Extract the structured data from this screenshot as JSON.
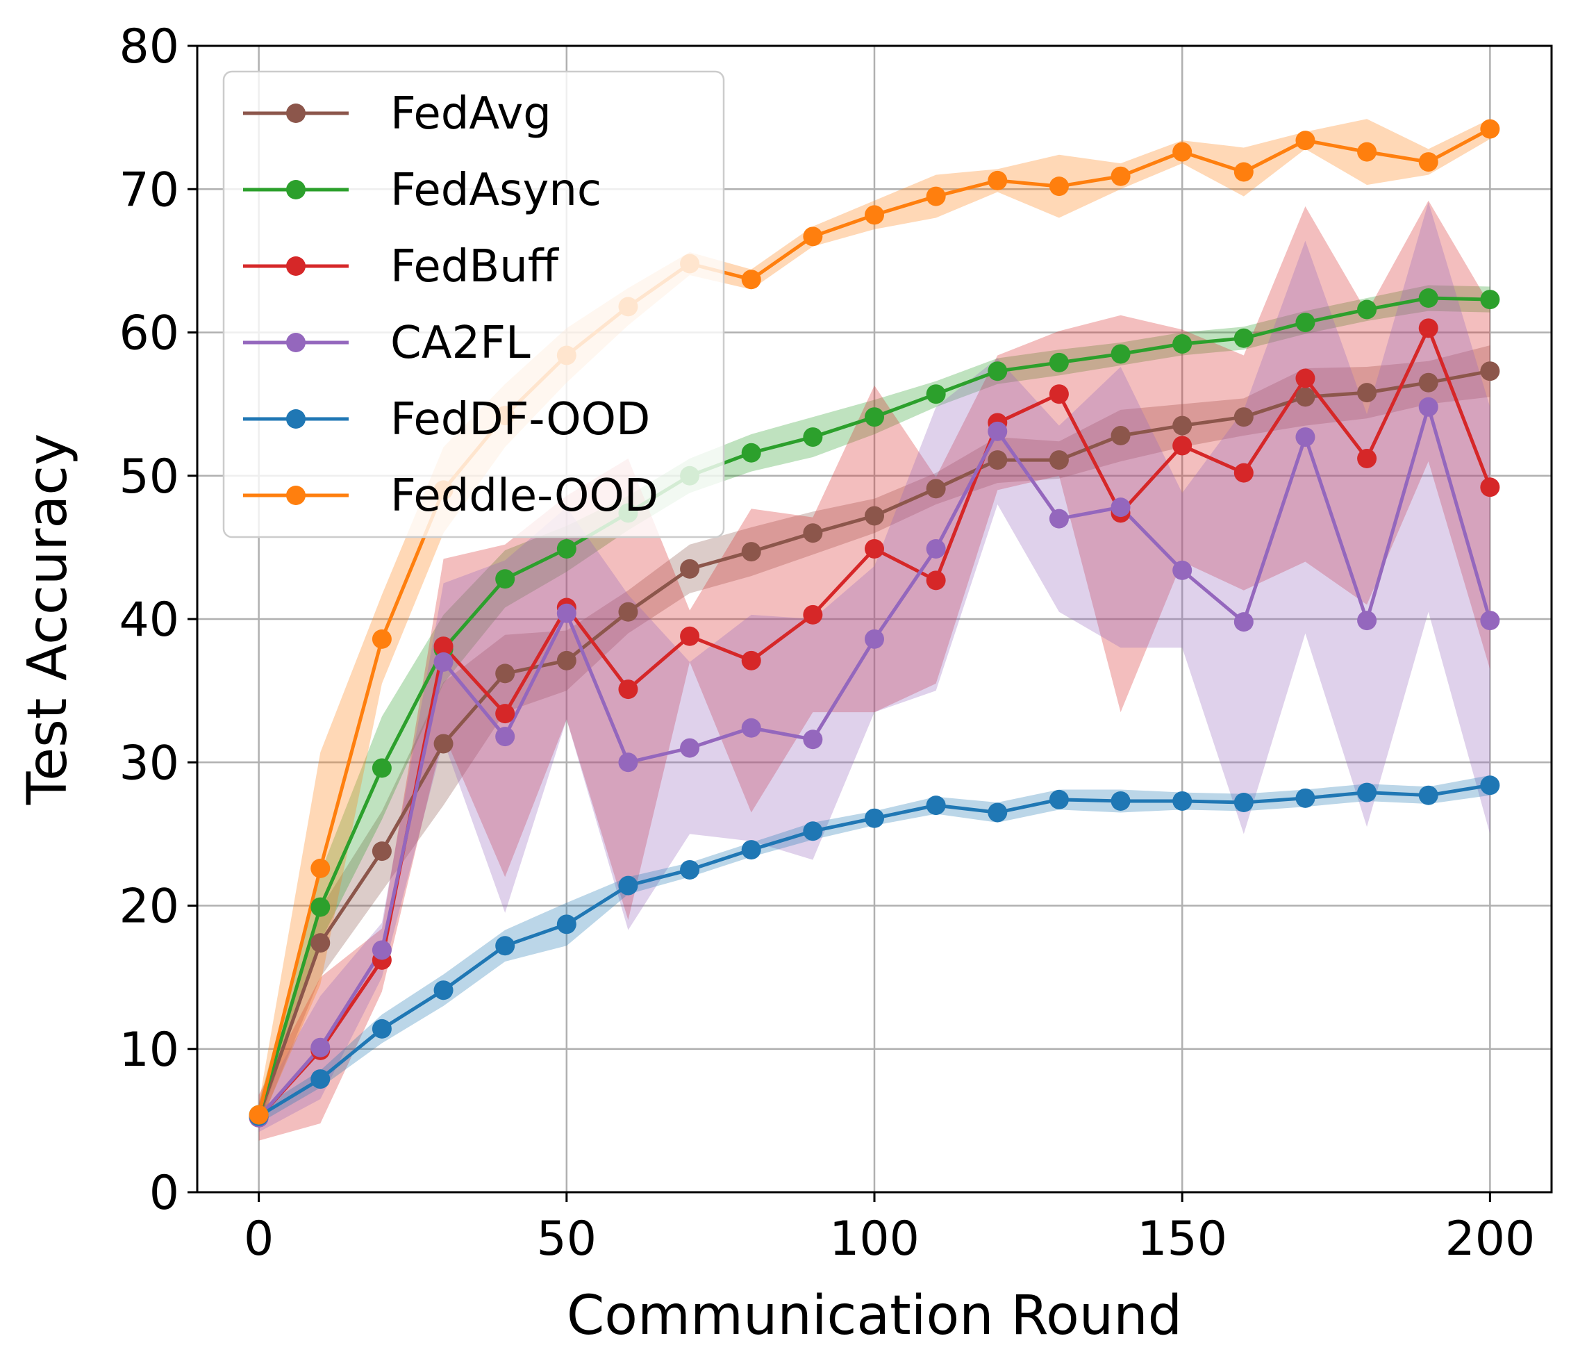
{
  "chart_data": {
    "type": "line",
    "xlabel": "Communication Round",
    "ylabel": "Test Accuracy",
    "xlim": [
      -10,
      210
    ],
    "ylim": [
      0,
      80
    ],
    "xticks": [
      0,
      50,
      100,
      150,
      200
    ],
    "yticks": [
      0,
      10,
      20,
      30,
      40,
      50,
      60,
      70,
      80
    ],
    "grid": true,
    "legend_position": "top-left",
    "x": [
      0,
      10,
      20,
      30,
      40,
      50,
      60,
      70,
      80,
      90,
      100,
      110,
      120,
      130,
      140,
      150,
      160,
      170,
      180,
      190,
      200
    ],
    "series": [
      {
        "name": "FedAvg",
        "color": "#8c564b",
        "values": [
          5.3,
          17.4,
          23.8,
          31.3,
          36.2,
          37.1,
          40.5,
          43.5,
          44.7,
          46.0,
          47.2,
          49.1,
          51.1,
          51.1,
          52.8,
          53.5,
          54.1,
          55.5,
          55.8,
          56.5,
          57.3
        ],
        "lower": [
          4.5,
          15.0,
          21.0,
          27.0,
          33.5,
          35.0,
          39.0,
          41.8,
          43.0,
          44.5,
          46.0,
          48.0,
          49.5,
          49.8,
          51.0,
          52.0,
          52.8,
          53.5,
          54.0,
          55.0,
          55.5
        ],
        "upper": [
          6.1,
          19.8,
          26.6,
          35.6,
          38.9,
          39.2,
          42.0,
          45.2,
          46.4,
          47.5,
          48.4,
          50.2,
          52.7,
          52.4,
          54.6,
          55.0,
          55.4,
          57.5,
          57.6,
          58.0,
          59.1
        ]
      },
      {
        "name": "FedAsync",
        "color": "#2ca02c",
        "values": [
          5.4,
          19.9,
          29.6,
          37.9,
          42.8,
          44.9,
          47.4,
          50.0,
          51.6,
          52.7,
          54.1,
          55.7,
          57.3,
          57.9,
          58.5,
          59.2,
          59.6,
          60.7,
          61.6,
          62.4,
          62.3
        ],
        "lower": [
          4.6,
          17.5,
          26.0,
          35.5,
          40.8,
          43.3,
          46.2,
          48.8,
          50.3,
          51.3,
          52.9,
          54.8,
          56.4,
          57.0,
          57.7,
          58.4,
          58.8,
          59.9,
          60.8,
          61.5,
          61.4
        ],
        "upper": [
          6.2,
          22.3,
          33.2,
          40.3,
          44.8,
          46.5,
          48.6,
          51.2,
          52.9,
          54.1,
          55.3,
          56.6,
          58.2,
          58.8,
          59.3,
          60.0,
          60.4,
          61.5,
          62.4,
          63.3,
          63.2
        ]
      },
      {
        "name": "FedBuff",
        "color": "#d62728",
        "values": [
          5.2,
          9.9,
          16.2,
          38.1,
          33.4,
          40.8,
          35.1,
          38.8,
          37.1,
          40.3,
          44.9,
          42.7,
          53.7,
          55.7,
          47.4,
          52.1,
          50.2,
          56.8,
          51.2,
          60.3,
          49.2
        ],
        "lower": [
          3.6,
          4.8,
          14.0,
          32.0,
          22.0,
          33.0,
          19.0,
          37.0,
          26.5,
          33.5,
          33.5,
          35.5,
          49.0,
          50.0,
          33.5,
          44.0,
          42.0,
          44.0,
          41.0,
          51.0,
          36.5
        ],
        "upper": [
          6.8,
          15.0,
          18.4,
          44.2,
          45.2,
          48.6,
          51.2,
          40.6,
          47.7,
          47.1,
          56.3,
          49.9,
          58.4,
          60.1,
          61.2,
          60.2,
          58.4,
          68.8,
          61.4,
          69.2,
          61.9
        ]
      },
      {
        "name": "CA2FL",
        "color": "#9467bd",
        "values": [
          5.2,
          10.1,
          16.9,
          37.0,
          31.8,
          40.4,
          30.0,
          31.0,
          32.4,
          31.6,
          38.6,
          44.9,
          53.1,
          47.0,
          47.8,
          43.4,
          39.8,
          52.7,
          39.9,
          54.8,
          39.9
        ],
        "lower": [
          4.2,
          6.5,
          15.0,
          31.5,
          19.5,
          33.0,
          18.3,
          25.0,
          24.5,
          23.2,
          33.5,
          35.0,
          48.0,
          40.5,
          38.0,
          38.0,
          25.0,
          39.0,
          25.5,
          40.5,
          25.0
        ],
        "upper": [
          6.2,
          13.7,
          18.8,
          42.5,
          44.1,
          47.8,
          41.7,
          37.0,
          40.3,
          40.0,
          43.7,
          54.8,
          58.2,
          53.5,
          57.6,
          48.8,
          54.6,
          66.4,
          54.3,
          69.1,
          54.8
        ]
      },
      {
        "name": "FedDF-OOD",
        "color": "#1f77b4",
        "values": [
          5.3,
          7.9,
          11.4,
          14.1,
          17.2,
          18.7,
          21.4,
          22.5,
          23.9,
          25.2,
          26.1,
          27.0,
          26.5,
          27.4,
          27.3,
          27.3,
          27.2,
          27.5,
          27.9,
          27.7,
          28.4
        ],
        "lower": [
          4.8,
          7.3,
          10.4,
          13.0,
          16.1,
          17.2,
          20.8,
          22.0,
          23.4,
          24.6,
          25.6,
          26.4,
          25.8,
          26.7,
          26.5,
          26.7,
          26.6,
          26.9,
          27.3,
          27.1,
          27.7
        ],
        "upper": [
          5.8,
          8.5,
          12.4,
          15.2,
          18.3,
          20.2,
          22.0,
          23.0,
          24.4,
          25.8,
          26.6,
          27.6,
          27.2,
          28.1,
          28.1,
          27.9,
          27.8,
          28.1,
          28.5,
          28.3,
          29.1
        ]
      },
      {
        "name": "Feddle-OOD",
        "color": "#ff7f0e",
        "values": [
          5.4,
          22.6,
          38.6,
          49.0,
          54.2,
          58.4,
          61.8,
          64.8,
          63.7,
          66.7,
          68.2,
          69.5,
          70.6,
          70.2,
          70.9,
          72.6,
          71.2,
          73.4,
          72.6,
          71.9,
          74.2
        ],
        "lower": [
          4.6,
          14.5,
          35.5,
          46.0,
          52.0,
          56.5,
          60.5,
          64.0,
          63.0,
          66.0,
          67.2,
          68.0,
          69.8,
          68.0,
          70.0,
          71.8,
          69.5,
          72.8,
          70.3,
          71.0,
          73.5
        ],
        "upper": [
          6.2,
          30.7,
          41.7,
          52.0,
          56.4,
          60.3,
          63.1,
          65.6,
          64.4,
          67.4,
          69.2,
          71.0,
          71.4,
          72.4,
          71.8,
          73.4,
          72.9,
          74.0,
          74.9,
          72.8,
          74.9
        ]
      }
    ]
  }
}
